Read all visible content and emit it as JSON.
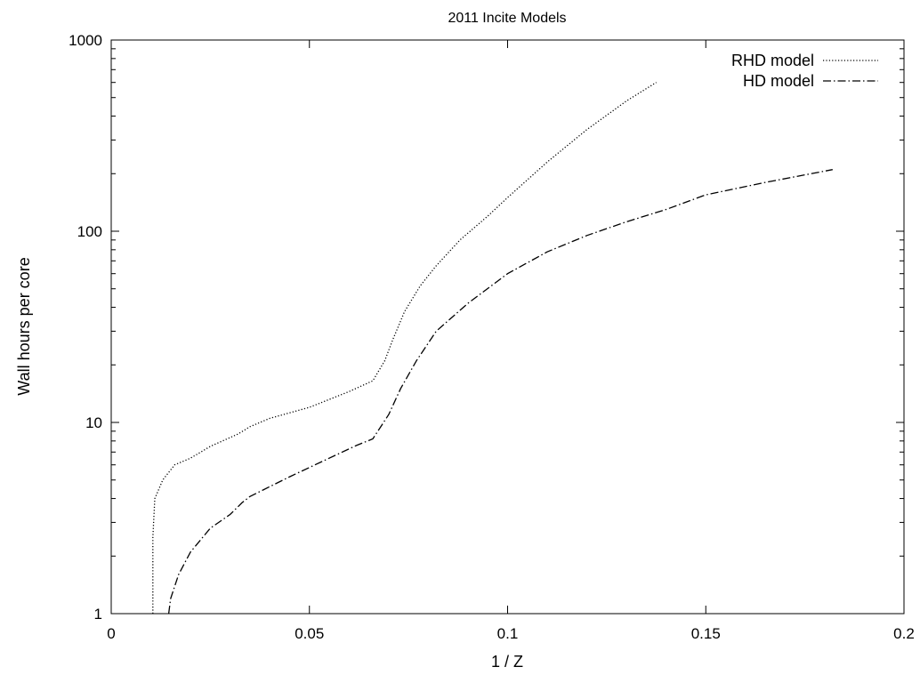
{
  "chart_data": {
    "type": "line",
    "title": "2011 Incite Models",
    "xlabel": "1 / Z",
    "ylabel": "Wall hours per core",
    "xlim": [
      0,
      0.2
    ],
    "ylim": [
      1,
      1000
    ],
    "yscale": "log",
    "grid": false,
    "legend_position": "top-right",
    "x_ticks": [
      0,
      0.05,
      0.1,
      0.15,
      0.2
    ],
    "x_tick_labels": [
      "0",
      "0.05",
      "0.1",
      "0.15",
      "0.2"
    ],
    "y_ticks": [
      1,
      10,
      100,
      1000
    ],
    "y_tick_labels": [
      "1",
      "10",
      "100",
      "1000"
    ],
    "series": [
      {
        "name": "RHD model",
        "style": "dotted",
        "color": "#000000",
        "points": [
          [
            0.0105,
            1
          ],
          [
            0.0105,
            2.5
          ],
          [
            0.011,
            4
          ],
          [
            0.013,
            5
          ],
          [
            0.016,
            6
          ],
          [
            0.02,
            6.5
          ],
          [
            0.025,
            7.5
          ],
          [
            0.032,
            8.7
          ],
          [
            0.035,
            9.5
          ],
          [
            0.04,
            10.5
          ],
          [
            0.05,
            12
          ],
          [
            0.06,
            14.5
          ],
          [
            0.066,
            16.5
          ],
          [
            0.069,
            21
          ],
          [
            0.071,
            27
          ],
          [
            0.074,
            38
          ],
          [
            0.078,
            52
          ],
          [
            0.082,
            66
          ],
          [
            0.088,
            90
          ],
          [
            0.095,
            120
          ],
          [
            0.1,
            150
          ],
          [
            0.11,
            230
          ],
          [
            0.12,
            340
          ],
          [
            0.13,
            480
          ],
          [
            0.1375,
            600
          ]
        ]
      },
      {
        "name": "HD model",
        "style": "dash-dot",
        "color": "#000000",
        "points": [
          [
            0.0145,
            1
          ],
          [
            0.015,
            1.2
          ],
          [
            0.017,
            1.6
          ],
          [
            0.02,
            2.1
          ],
          [
            0.025,
            2.8
          ],
          [
            0.03,
            3.3
          ],
          [
            0.033,
            3.8
          ],
          [
            0.035,
            4.1
          ],
          [
            0.045,
            5.2
          ],
          [
            0.055,
            6.5
          ],
          [
            0.062,
            7.6
          ],
          [
            0.066,
            8.2
          ],
          [
            0.07,
            11
          ],
          [
            0.073,
            15
          ],
          [
            0.077,
            21
          ],
          [
            0.082,
            30
          ],
          [
            0.09,
            42
          ],
          [
            0.1,
            60
          ],
          [
            0.11,
            78
          ],
          [
            0.12,
            95
          ],
          [
            0.13,
            112
          ],
          [
            0.14,
            130
          ],
          [
            0.15,
            155
          ],
          [
            0.165,
            180
          ],
          [
            0.182,
            210
          ]
        ]
      }
    ]
  }
}
